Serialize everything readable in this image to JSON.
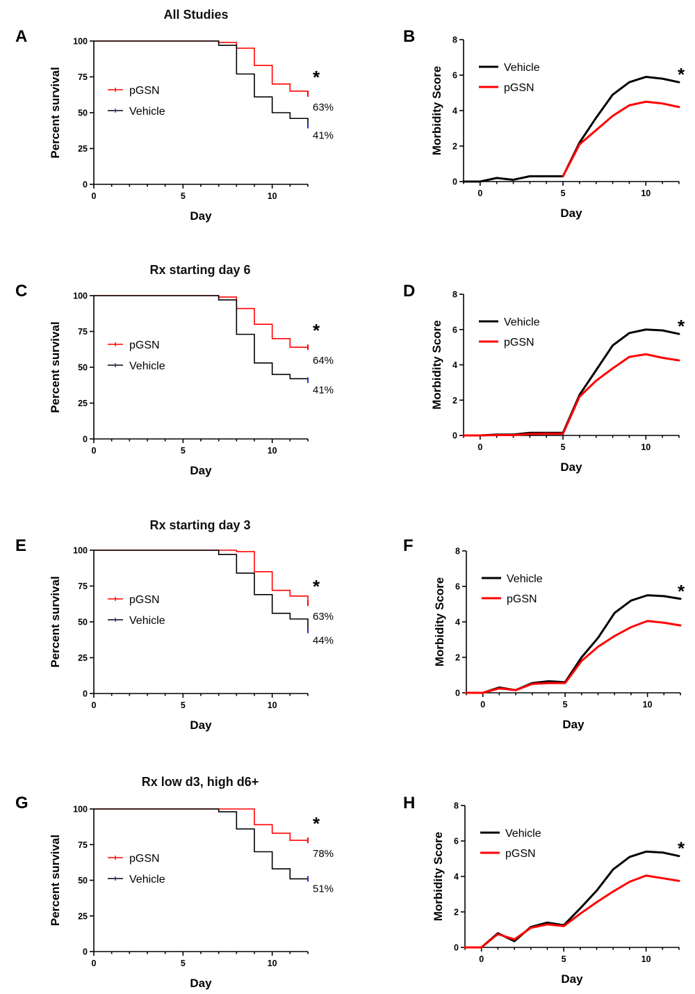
{
  "colors": {
    "pgsn": "#ff0000",
    "vehicle": "#000000",
    "censor_vehicle": "#1f2fd0"
  },
  "rows": [
    {
      "title": "All Studies",
      "survival_letter": "A",
      "morbidity_letter": "B"
    },
    {
      "title": "Rx starting day 6",
      "survival_letter": "C",
      "morbidity_letter": "D"
    },
    {
      "title": "Rx starting day 3",
      "survival_letter": "E",
      "morbidity_letter": "F"
    },
    {
      "title": "Rx low d3, high d6+",
      "survival_letter": "G",
      "morbidity_letter": "H"
    }
  ],
  "chart_data": [
    {
      "panel": "A",
      "type": "line",
      "subtype": "kaplan-meier",
      "title": "All Studies",
      "xlabel": "Day",
      "ylabel": "Percent survival",
      "xlim": [
        0,
        12
      ],
      "ylim": [
        0,
        100
      ],
      "xticks": [
        0,
        5,
        10
      ],
      "yticks": [
        0,
        25,
        50,
        75,
        100
      ],
      "legend": [
        "pGSN",
        "Vehicle"
      ],
      "series": [
        {
          "name": "pGSN",
          "color": "#ff0000",
          "x": [
            0,
            7,
            8,
            9,
            10,
            11,
            12
          ],
          "y": [
            100,
            99,
            95,
            83,
            70,
            65,
            63
          ]
        },
        {
          "name": "Vehicle",
          "color": "#000000",
          "x": [
            0,
            7,
            8,
            9,
            10,
            11,
            12
          ],
          "y": [
            100,
            97,
            77,
            61,
            50,
            46,
            41
          ]
        }
      ],
      "annotations": {
        "star": "*",
        "pgsn_pct": "63%",
        "vehicle_pct": "41%"
      }
    },
    {
      "panel": "B",
      "type": "line",
      "xlabel": "Day",
      "ylabel": "Morbidity Score",
      "xlim": [
        -1,
        12
      ],
      "ylim": [
        0,
        8
      ],
      "xticks": [
        0,
        5,
        10
      ],
      "yticks": [
        0,
        2,
        4,
        6,
        8
      ],
      "legend": [
        "Vehicle",
        "pGSN"
      ],
      "series": [
        {
          "name": "Vehicle",
          "color": "#000000",
          "x": [
            -1,
            0,
            1,
            2,
            3,
            4,
            5,
            6,
            7,
            8,
            9,
            10,
            11,
            12
          ],
          "y": [
            0,
            0,
            0.2,
            0.1,
            0.3,
            0.3,
            0.3,
            2.2,
            3.6,
            4.9,
            5.6,
            5.9,
            5.8,
            5.6
          ]
        },
        {
          "name": "pGSN",
          "color": "#ff0000",
          "x": [
            5,
            6,
            7,
            8,
            9,
            10,
            11,
            12
          ],
          "y": [
            0.3,
            2.1,
            2.9,
            3.7,
            4.3,
            4.5,
            4.4,
            4.2
          ]
        }
      ],
      "annotations": {
        "star": "*"
      }
    },
    {
      "panel": "C",
      "type": "line",
      "subtype": "kaplan-meier",
      "title": "Rx starting day 6",
      "xlabel": "Day",
      "ylabel": "Percent survival",
      "xlim": [
        0,
        12
      ],
      "ylim": [
        0,
        100
      ],
      "xticks": [
        0,
        5,
        10
      ],
      "yticks": [
        0,
        25,
        50,
        75,
        100
      ],
      "legend": [
        "pGSN",
        "Vehicle"
      ],
      "series": [
        {
          "name": "pGSN",
          "color": "#ff0000",
          "x": [
            0,
            7,
            8,
            9,
            10,
            11,
            12
          ],
          "y": [
            100,
            99,
            91,
            80,
            70,
            64,
            64
          ]
        },
        {
          "name": "Vehicle",
          "color": "#000000",
          "x": [
            0,
            7,
            8,
            9,
            10,
            11,
            12
          ],
          "y": [
            100,
            97,
            73,
            53,
            45,
            42,
            41
          ]
        }
      ],
      "annotations": {
        "star": "*",
        "pgsn_pct": "64%",
        "vehicle_pct": "41%"
      }
    },
    {
      "panel": "D",
      "type": "line",
      "xlabel": "Day",
      "ylabel": "Morbidity Score",
      "xlim": [
        -1,
        12
      ],
      "ylim": [
        0,
        8
      ],
      "xticks": [
        0,
        5,
        10
      ],
      "yticks": [
        0,
        2,
        4,
        6,
        8
      ],
      "legend": [
        "Vehicle",
        "pGSN"
      ],
      "series": [
        {
          "name": "Vehicle",
          "color": "#000000",
          "x": [
            -1,
            0,
            1,
            2,
            3,
            4,
            5,
            6,
            7,
            8,
            9,
            10,
            11,
            12
          ],
          "y": [
            0,
            0,
            0.05,
            0.05,
            0.15,
            0.15,
            0.15,
            2.3,
            3.7,
            5.1,
            5.8,
            6.0,
            5.95,
            5.75
          ]
        },
        {
          "name": "pGSN",
          "color": "#ff0000",
          "x": [
            -1,
            0,
            1,
            2,
            3,
            4,
            5,
            6,
            7,
            8,
            9,
            10,
            11,
            12
          ],
          "y": [
            0,
            0,
            0.02,
            0.02,
            0.08,
            0.1,
            0.1,
            2.2,
            3.1,
            3.8,
            4.45,
            4.6,
            4.4,
            4.25
          ]
        }
      ],
      "annotations": {
        "star": "*"
      }
    },
    {
      "panel": "E",
      "type": "line",
      "subtype": "kaplan-meier",
      "title": "Rx starting day 3",
      "xlabel": "Day",
      "ylabel": "Percent survival",
      "xlim": [
        0,
        12
      ],
      "ylim": [
        0,
        100
      ],
      "xticks": [
        0,
        5,
        10
      ],
      "yticks": [
        0,
        25,
        50,
        75,
        100
      ],
      "legend": [
        "pGSN",
        "Vehicle"
      ],
      "series": [
        {
          "name": "pGSN",
          "color": "#ff0000",
          "x": [
            0,
            7,
            8,
            9,
            10,
            11,
            12
          ],
          "y": [
            100,
            100,
            99,
            85,
            72,
            68,
            63
          ]
        },
        {
          "name": "Vehicle",
          "color": "#000000",
          "x": [
            0,
            7,
            8,
            9,
            10,
            11,
            12
          ],
          "y": [
            100,
            97,
            84,
            69,
            56,
            52,
            44
          ]
        }
      ],
      "annotations": {
        "star": "*",
        "pgsn_pct": "63%",
        "vehicle_pct": "44%"
      }
    },
    {
      "panel": "F",
      "type": "line",
      "xlabel": "Day",
      "ylabel": "Morbidity Score",
      "xlim": [
        -1,
        12
      ],
      "ylim": [
        0,
        8
      ],
      "xticks": [
        0,
        5,
        10
      ],
      "yticks": [
        0,
        2,
        4,
        6,
        8
      ],
      "legend": [
        "Vehicle",
        "pGSN"
      ],
      "series": [
        {
          "name": "Vehicle",
          "color": "#000000",
          "x": [
            -1,
            0,
            1,
            2,
            3,
            4,
            5,
            6,
            7,
            8,
            9,
            10,
            11,
            12
          ],
          "y": [
            0,
            0,
            0.3,
            0.15,
            0.55,
            0.65,
            0.6,
            2.0,
            3.1,
            4.5,
            5.2,
            5.5,
            5.45,
            5.3
          ]
        },
        {
          "name": "pGSN",
          "color": "#ff0000",
          "x": [
            -1,
            0,
            1,
            2,
            3,
            4,
            5,
            6,
            7,
            8,
            9,
            10,
            11,
            12
          ],
          "y": [
            0,
            0,
            0.25,
            0.15,
            0.5,
            0.55,
            0.55,
            1.8,
            2.6,
            3.2,
            3.7,
            4.05,
            3.95,
            3.8
          ]
        }
      ],
      "annotations": {
        "star": "*"
      }
    },
    {
      "panel": "G",
      "type": "line",
      "subtype": "kaplan-meier",
      "title": "Rx low d3, high d6+",
      "xlabel": "Day",
      "ylabel": "Percent survival",
      "xlim": [
        0,
        12
      ],
      "ylim": [
        0,
        100
      ],
      "xticks": [
        0,
        5,
        10
      ],
      "yticks": [
        0,
        25,
        50,
        75,
        100
      ],
      "legend": [
        "pGSN",
        "Vehicle"
      ],
      "series": [
        {
          "name": "pGSN",
          "color": "#ff0000",
          "x": [
            0,
            8,
            9,
            10,
            11,
            12
          ],
          "y": [
            100,
            100,
            89,
            83,
            78,
            78
          ]
        },
        {
          "name": "Vehicle",
          "color": "#000000",
          "x": [
            0,
            7,
            8,
            9,
            10,
            11,
            12
          ],
          "y": [
            100,
            98,
            86,
            70,
            58,
            51,
            51
          ]
        }
      ],
      "annotations": {
        "star": "*",
        "pgsn_pct": "78%",
        "vehicle_pct": "51%"
      }
    },
    {
      "panel": "H",
      "type": "line",
      "xlabel": "Day",
      "ylabel": "Morbidity Score",
      "xlim": [
        -1,
        12
      ],
      "ylim": [
        0,
        8
      ],
      "xticks": [
        0,
        5,
        10
      ],
      "yticks": [
        0,
        2,
        4,
        6,
        8
      ],
      "legend": [
        "Vehicle",
        "pGSN"
      ],
      "series": [
        {
          "name": "Vehicle",
          "color": "#000000",
          "x": [
            -1,
            0,
            1,
            2,
            3,
            4,
            5,
            6,
            7,
            8,
            9,
            10,
            11,
            12
          ],
          "y": [
            0,
            0,
            0.8,
            0.35,
            1.15,
            1.4,
            1.25,
            2.2,
            3.2,
            4.4,
            5.1,
            5.4,
            5.35,
            5.15
          ]
        },
        {
          "name": "pGSN",
          "color": "#ff0000",
          "x": [
            -1,
            0,
            1,
            2,
            3,
            4,
            5,
            6,
            7,
            8,
            9,
            10,
            11,
            12
          ],
          "y": [
            0,
            0,
            0.75,
            0.45,
            1.1,
            1.3,
            1.2,
            1.9,
            2.55,
            3.15,
            3.7,
            4.05,
            3.9,
            3.75
          ]
        }
      ],
      "annotations": {
        "star": "*"
      }
    }
  ]
}
